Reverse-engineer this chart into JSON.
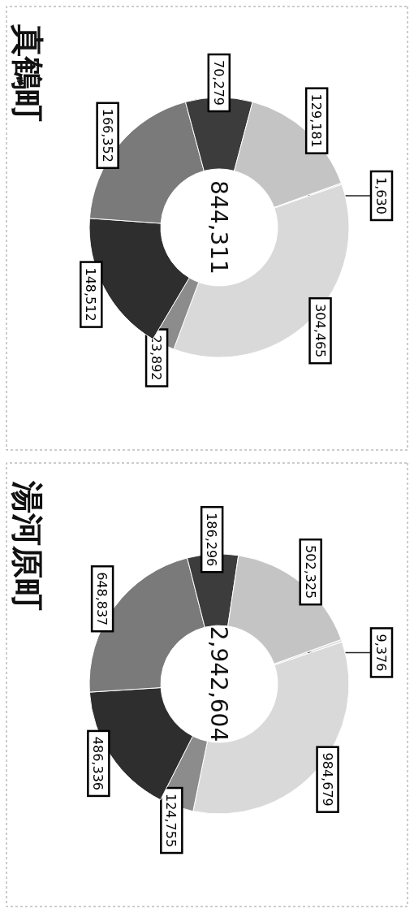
{
  "chart_data": [
    {
      "type": "donut",
      "title": "真鶴町",
      "categories": [
        null,
        null,
        null,
        null,
        null,
        null,
        null
      ],
      "values": [
        1630,
        304465,
        23892,
        148512,
        166352,
        70279,
        129181
      ],
      "colors": [
        "#e0e0e0",
        "#d9d9d9",
        "#8c8c8c",
        "#2e2e2e",
        "#7a7a7a",
        "#3c3c3c",
        "#c4c4c4"
      ],
      "value_labels": [
        "1,630",
        "304,465",
        "23,892",
        "148,512",
        "166,352",
        "70,279",
        "129,181"
      ],
      "annotations": [
        "844,311"
      ]
    },
    {
      "type": "donut",
      "title": "湯河原町",
      "categories": [
        null,
        null,
        null,
        null,
        null,
        null,
        null
      ],
      "values": [
        9376,
        984679,
        124755,
        486336,
        648837,
        186296,
        502325
      ],
      "colors": [
        "#e0e0e0",
        "#d9d9d9",
        "#8c8c8c",
        "#2e2e2e",
        "#7a7a7a",
        "#3c3c3c",
        "#c4c4c4"
      ],
      "value_labels": [
        "9,376",
        "984,679",
        "124,755",
        "486,336",
        "648,837",
        "186,296",
        "502,325"
      ],
      "annotations": [
        "2,942,604"
      ]
    }
  ]
}
